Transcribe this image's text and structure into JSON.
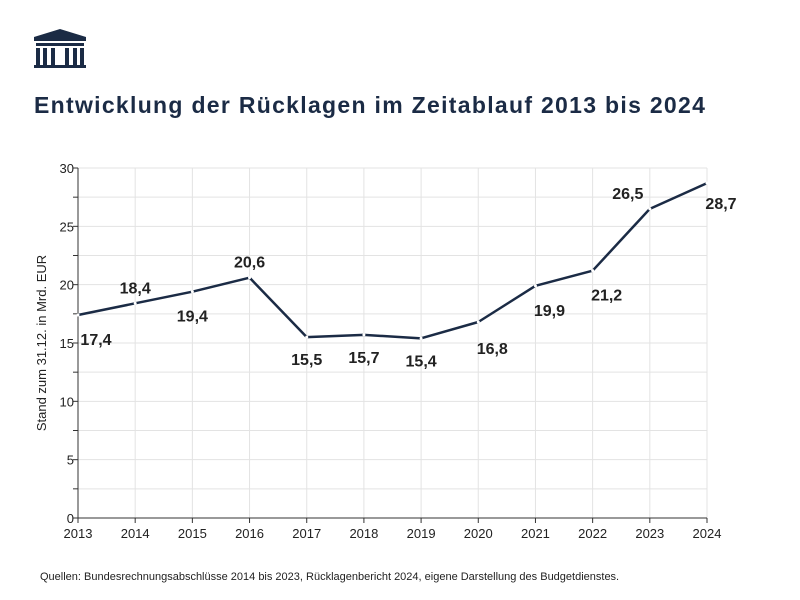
{
  "title": "Entwicklung der Rücklagen im Zeitablauf 2013 bis 2024",
  "source": "Quellen: Bundesrechnungsabschlüsse 2014 bis 2023, Rücklagenbericht 2024, eigene Darstellung des Budgetdienstes.",
  "logo": "parliament-icon",
  "colors": {
    "line": "#1b2b45",
    "grid": "#e3e3e3",
    "text": "#222222"
  },
  "chart_data": {
    "type": "line",
    "title": "Entwicklung der Rücklagen im Zeitablauf 2013 bis 2024",
    "xlabel": "",
    "ylabel": "Stand zum 31.12. in Mrd. EUR",
    "categories": [
      "2013",
      "2014",
      "2015",
      "2016",
      "2017",
      "2018",
      "2019",
      "2020",
      "2021",
      "2022",
      "2023",
      "2024"
    ],
    "values": [
      17.4,
      18.4,
      19.4,
      20.6,
      15.5,
      15.7,
      15.4,
      16.8,
      19.9,
      21.2,
      26.5,
      28.7
    ],
    "labels": [
      "17,4",
      "18,4",
      "19,4",
      "20,6",
      "15,5",
      "15,7",
      "15,4",
      "16,8",
      "19,9",
      "21,2",
      "26,5",
      "28,7"
    ],
    "yticks": [
      "0",
      "5",
      "10",
      "15",
      "20",
      "25",
      "30"
    ],
    "ylim": [
      0,
      30
    ],
    "grid": true,
    "legend": "none"
  }
}
